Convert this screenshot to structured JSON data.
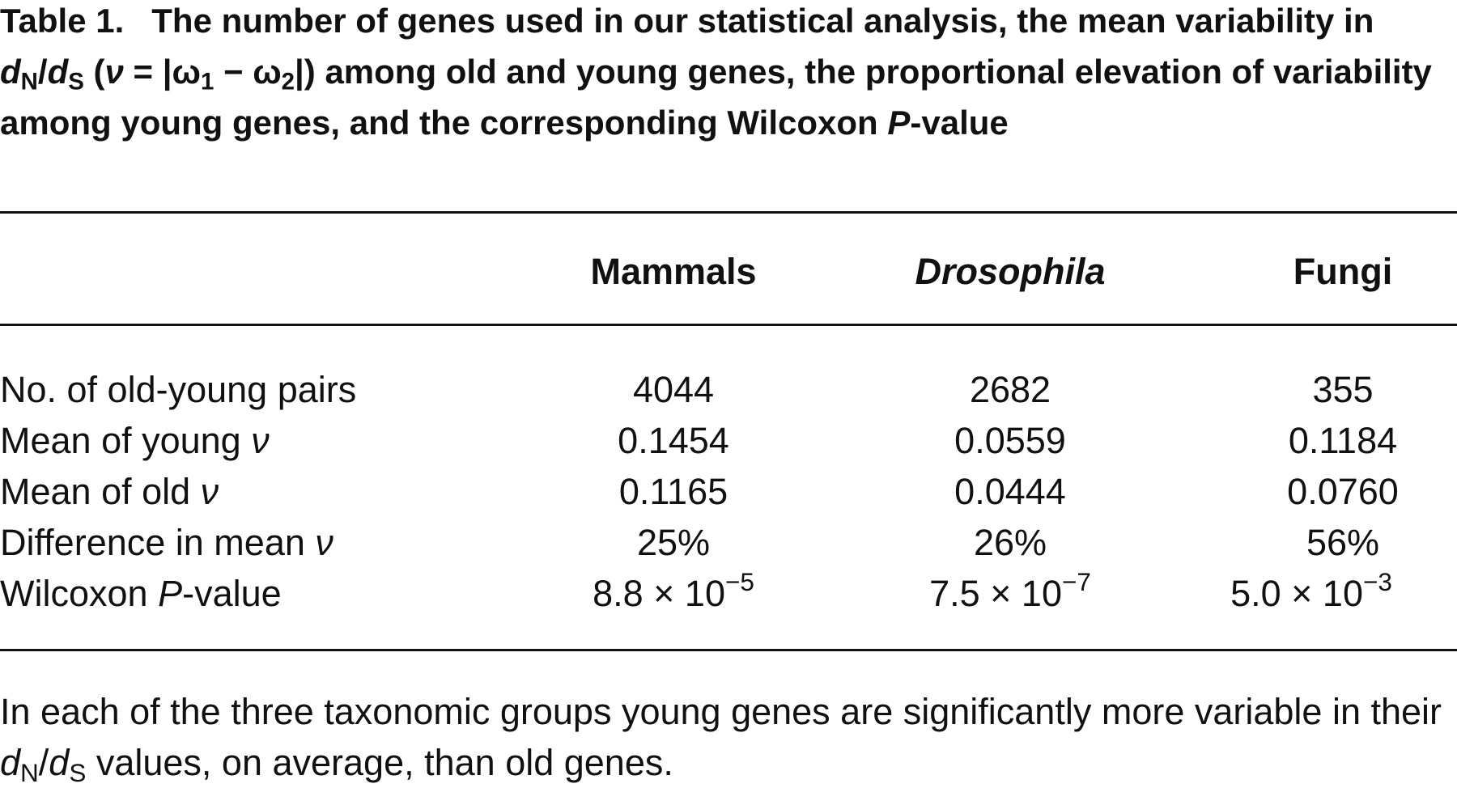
{
  "caption": {
    "label": "Table 1.",
    "parts": [
      "The number of genes used in our statistical analysis, the mean variability in ",
      "d",
      "N",
      "/",
      "d",
      "S",
      " (",
      "ν",
      " = |",
      "ω",
      "1",
      " − ",
      "ω",
      "2",
      "|) among old and young genes, the proportional elevation of variability among young genes, and the corresponding Wilcoxon ",
      "P",
      "-value"
    ]
  },
  "table": {
    "columns": [
      "Mammals",
      "Drosophila",
      "Fungi"
    ],
    "rows": [
      {
        "label": [
          "No. of old-young pairs"
        ],
        "cells": [
          "4044",
          "2682",
          "355"
        ]
      },
      {
        "label": [
          "Mean of young ",
          "ν"
        ],
        "cells": [
          "0.1454",
          "0.0559",
          "0.1184"
        ]
      },
      {
        "label": [
          "Mean of old ",
          "ν"
        ],
        "cells": [
          "0.1165",
          "0.0444",
          "0.0760"
        ]
      },
      {
        "label": [
          "Difference in mean ",
          "ν"
        ],
        "cells": [
          "25%",
          "26%",
          "56%"
        ]
      },
      {
        "label": [
          "Wilcoxon ",
          "P",
          "-value"
        ],
        "cells": [
          {
            "base": "8.8 × 10",
            "exponent": "−5"
          },
          {
            "base": "7.5 × 10",
            "exponent": "−7"
          },
          {
            "base": "5.0 × 10",
            "exponent": "−3"
          }
        ]
      }
    ]
  },
  "footnote": {
    "parts": [
      "In each of the three taxonomic groups young genes are significantly more variable in their ",
      "d",
      "N",
      "/",
      "d",
      "S",
      " values, on average, than old genes."
    ]
  }
}
